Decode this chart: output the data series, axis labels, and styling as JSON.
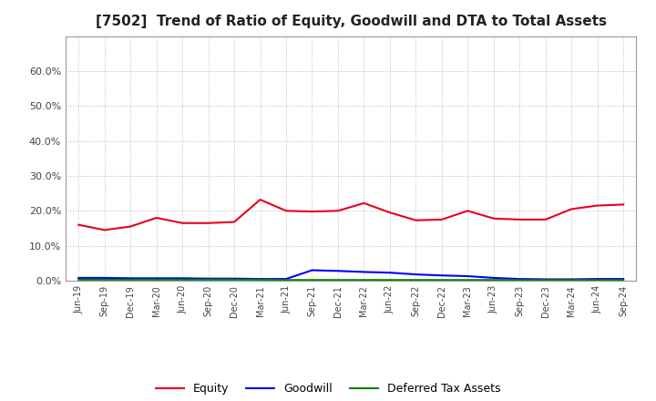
{
  "title": "[7502]  Trend of Ratio of Equity, Goodwill and DTA to Total Assets",
  "x_labels": [
    "Jun-19",
    "Sep-19",
    "Dec-19",
    "Mar-20",
    "Jun-20",
    "Sep-20",
    "Dec-20",
    "Mar-21",
    "Jun-21",
    "Sep-21",
    "Dec-21",
    "Mar-22",
    "Jun-22",
    "Sep-22",
    "Dec-22",
    "Mar-23",
    "Jun-23",
    "Sep-23",
    "Dec-23",
    "Mar-24",
    "Jun-24",
    "Sep-24"
  ],
  "equity": [
    0.16,
    0.145,
    0.155,
    0.18,
    0.165,
    0.165,
    0.168,
    0.232,
    0.2,
    0.198,
    0.2,
    0.222,
    0.195,
    0.173,
    0.175,
    0.2,
    0.178,
    0.175,
    0.175,
    0.205,
    0.215,
    0.218
  ],
  "goodwill": [
    0.008,
    0.008,
    0.007,
    0.007,
    0.007,
    0.006,
    0.006,
    0.005,
    0.005,
    0.03,
    0.028,
    0.025,
    0.023,
    0.018,
    0.015,
    0.013,
    0.008,
    0.005,
    0.004,
    0.004,
    0.005,
    0.005
  ],
  "dta": [
    0.003,
    0.003,
    0.003,
    0.003,
    0.003,
    0.003,
    0.003,
    0.003,
    0.002,
    0.002,
    0.002,
    0.002,
    0.002,
    0.002,
    0.002,
    0.002,
    0.002,
    0.002,
    0.002,
    0.002,
    0.002,
    0.002
  ],
  "equity_color": "#e8001c",
  "goodwill_color": "#0000ff",
  "dta_color": "#008000",
  "ylim": [
    0.0,
    0.7
  ],
  "yticks": [
    0.0,
    0.1,
    0.2,
    0.3,
    0.4,
    0.5,
    0.6
  ],
  "background_color": "#ffffff",
  "grid_color": "#bbbbbb",
  "title_fontsize": 11,
  "legend_labels": [
    "Equity",
    "Goodwill",
    "Deferred Tax Assets"
  ]
}
